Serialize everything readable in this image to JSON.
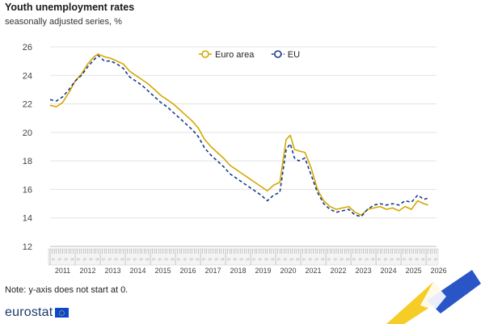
{
  "header": {
    "title": "Youth unemployment rates",
    "subtitle": "seasonally adjusted series, %"
  },
  "footer": {
    "note": "Note: y-axis does not start at 0.",
    "logo_text": "eurostat"
  },
  "colors": {
    "euro_area": "#d4a900",
    "eu": "#1b3a8c",
    "grid": "#e3e3e3",
    "axis_text": "#444444",
    "ribbon_yellow": "#f5c400",
    "ribbon_blue": "#2a55c6"
  },
  "icons": [
    "eu-flag-icon"
  ],
  "chart_data": {
    "type": "line",
    "ylim": [
      12,
      26
    ],
    "yticks": [
      12,
      14,
      16,
      18,
      20,
      22,
      24,
      26
    ],
    "x_range": [
      "2011-01",
      "2026-06"
    ],
    "xtick_labels": [
      "2011",
      "2012",
      "2013",
      "2014",
      "2015",
      "2016",
      "2017",
      "2018",
      "2019",
      "2020",
      "2021",
      "2022",
      "2023",
      "2024",
      "2025",
      "2026"
    ],
    "month_tick_labels": [
      "Q1",
      "Q2",
      "Q3",
      "Q4"
    ],
    "grid": "horizontal",
    "legend_position": "top-center",
    "series": [
      {
        "name": "Euro area",
        "style": "solid",
        "points": [
          [
            "2011-01",
            21.9
          ],
          [
            "2011-04",
            21.8
          ],
          [
            "2011-07",
            22.1
          ],
          [
            "2011-10",
            22.8
          ],
          [
            "2012-01",
            23.6
          ],
          [
            "2012-04",
            24.1
          ],
          [
            "2012-07",
            24.8
          ],
          [
            "2012-10",
            25.3
          ],
          [
            "2012-12",
            25.5
          ],
          [
            "2013-03",
            25.3
          ],
          [
            "2013-06",
            25.2
          ],
          [
            "2013-09",
            25.0
          ],
          [
            "2013-12",
            24.8
          ],
          [
            "2014-03",
            24.3
          ],
          [
            "2014-06",
            24.0
          ],
          [
            "2014-09",
            23.7
          ],
          [
            "2014-12",
            23.4
          ],
          [
            "2015-03",
            23.0
          ],
          [
            "2015-06",
            22.6
          ],
          [
            "2015-09",
            22.3
          ],
          [
            "2015-12",
            22.0
          ],
          [
            "2016-03",
            21.6
          ],
          [
            "2016-06",
            21.2
          ],
          [
            "2016-09",
            20.8
          ],
          [
            "2016-12",
            20.3
          ],
          [
            "2017-03",
            19.5
          ],
          [
            "2017-06",
            19.0
          ],
          [
            "2017-09",
            18.6
          ],
          [
            "2017-12",
            18.2
          ],
          [
            "2018-03",
            17.7
          ],
          [
            "2018-06",
            17.4
          ],
          [
            "2018-09",
            17.1
          ],
          [
            "2018-12",
            16.8
          ],
          [
            "2019-03",
            16.5
          ],
          [
            "2019-06",
            16.2
          ],
          [
            "2019-09",
            15.9
          ],
          [
            "2019-12",
            16.3
          ],
          [
            "2020-03",
            16.5
          ],
          [
            "2020-06",
            19.5
          ],
          [
            "2020-08",
            19.8
          ],
          [
            "2020-10",
            18.8
          ],
          [
            "2020-12",
            18.7
          ],
          [
            "2021-03",
            18.6
          ],
          [
            "2021-06",
            17.5
          ],
          [
            "2021-09",
            16.0
          ],
          [
            "2021-12",
            15.2
          ],
          [
            "2022-03",
            14.8
          ],
          [
            "2022-06",
            14.6
          ],
          [
            "2022-09",
            14.7
          ],
          [
            "2022-12",
            14.8
          ],
          [
            "2023-03",
            14.4
          ],
          [
            "2023-06",
            14.2
          ],
          [
            "2023-09",
            14.6
          ],
          [
            "2023-12",
            14.7
          ],
          [
            "2024-03",
            14.8
          ],
          [
            "2024-06",
            14.6
          ],
          [
            "2024-09",
            14.7
          ],
          [
            "2024-12",
            14.5
          ],
          [
            "2025-03",
            14.8
          ],
          [
            "2025-06",
            14.6
          ],
          [
            "2025-09",
            15.2
          ],
          [
            "2025-12",
            15.0
          ],
          [
            "2026-02",
            14.9
          ]
        ]
      },
      {
        "name": "EU",
        "style": "dashed",
        "points": [
          [
            "2011-01",
            22.3
          ],
          [
            "2011-04",
            22.2
          ],
          [
            "2011-07",
            22.5
          ],
          [
            "2011-10",
            23.0
          ],
          [
            "2012-01",
            23.6
          ],
          [
            "2012-04",
            24.0
          ],
          [
            "2012-07",
            24.6
          ],
          [
            "2012-10",
            25.1
          ],
          [
            "2012-12",
            25.4
          ],
          [
            "2013-03",
            25.0
          ],
          [
            "2013-06",
            25.0
          ],
          [
            "2013-09",
            24.8
          ],
          [
            "2013-12",
            24.5
          ],
          [
            "2014-03",
            23.9
          ],
          [
            "2014-06",
            23.6
          ],
          [
            "2014-09",
            23.3
          ],
          [
            "2014-12",
            22.9
          ],
          [
            "2015-03",
            22.5
          ],
          [
            "2015-06",
            22.1
          ],
          [
            "2015-09",
            21.8
          ],
          [
            "2015-12",
            21.4
          ],
          [
            "2016-03",
            21.0
          ],
          [
            "2016-06",
            20.6
          ],
          [
            "2016-09",
            20.2
          ],
          [
            "2016-12",
            19.7
          ],
          [
            "2017-03",
            18.9
          ],
          [
            "2017-06",
            18.4
          ],
          [
            "2017-09",
            18.0
          ],
          [
            "2017-12",
            17.6
          ],
          [
            "2018-03",
            17.1
          ],
          [
            "2018-06",
            16.8
          ],
          [
            "2018-09",
            16.5
          ],
          [
            "2018-12",
            16.2
          ],
          [
            "2019-03",
            15.9
          ],
          [
            "2019-06",
            15.6
          ],
          [
            "2019-09",
            15.2
          ],
          [
            "2019-12",
            15.6
          ],
          [
            "2020-03",
            15.8
          ],
          [
            "2020-06",
            18.8
          ],
          [
            "2020-08",
            19.2
          ],
          [
            "2020-10",
            18.2
          ],
          [
            "2020-12",
            18.0
          ],
          [
            "2021-03",
            18.2
          ],
          [
            "2021-06",
            17.0
          ],
          [
            "2021-09",
            15.8
          ],
          [
            "2021-12",
            15.0
          ],
          [
            "2022-03",
            14.6
          ],
          [
            "2022-06",
            14.4
          ],
          [
            "2022-09",
            14.5
          ],
          [
            "2022-12",
            14.6
          ],
          [
            "2023-03",
            14.2
          ],
          [
            "2023-06",
            14.1
          ],
          [
            "2023-09",
            14.6
          ],
          [
            "2023-12",
            14.9
          ],
          [
            "2024-03",
            15.0
          ],
          [
            "2024-06",
            14.9
          ],
          [
            "2024-09",
            15.0
          ],
          [
            "2024-12",
            14.9
          ],
          [
            "2025-03",
            15.2
          ],
          [
            "2025-06",
            15.1
          ],
          [
            "2025-09",
            15.6
          ],
          [
            "2025-12",
            15.3
          ],
          [
            "2026-02",
            15.4
          ]
        ]
      }
    ]
  }
}
